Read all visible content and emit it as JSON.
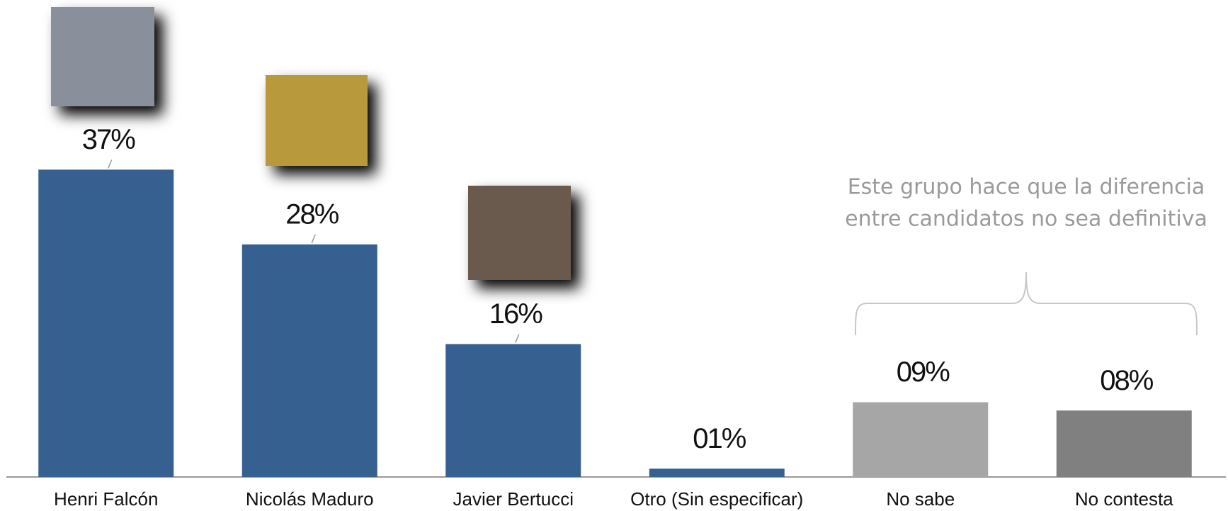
{
  "chart_data": {
    "type": "bar",
    "categories": [
      "Henri Falcón",
      "Nicolás Maduro",
      "Javier Bertucci",
      "Otro (Sin especificar)",
      "No sabe",
      "No contesta"
    ],
    "values": [
      37,
      28,
      16,
      1,
      9,
      8
    ],
    "value_labels": [
      "37%",
      "28%",
      "16%",
      "01%",
      "09%",
      "08%"
    ],
    "colors": [
      "#36608f",
      "#36608f",
      "#36608f",
      "#36608f",
      "#a6a6a6",
      "#808080"
    ],
    "annotation": [
      "Este grupo hace que la diferencia",
      "entre candidatos no sea definitiva"
    ]
  }
}
